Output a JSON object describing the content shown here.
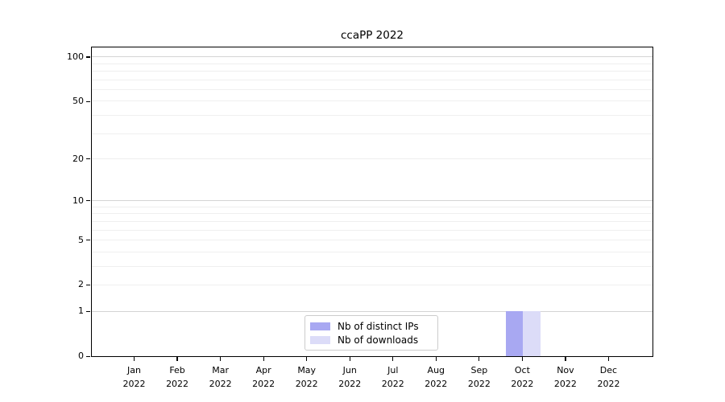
{
  "chart_data": {
    "type": "bar",
    "title": "ccaPP 2022",
    "categories": [
      {
        "month": "Jan",
        "year": "2022"
      },
      {
        "month": "Feb",
        "year": "2022"
      },
      {
        "month": "Mar",
        "year": "2022"
      },
      {
        "month": "Apr",
        "year": "2022"
      },
      {
        "month": "May",
        "year": "2022"
      },
      {
        "month": "Jun",
        "year": "2022"
      },
      {
        "month": "Jul",
        "year": "2022"
      },
      {
        "month": "Aug",
        "year": "2022"
      },
      {
        "month": "Sep",
        "year": "2022"
      },
      {
        "month": "Oct",
        "year": "2022"
      },
      {
        "month": "Nov",
        "year": "2022"
      },
      {
        "month": "Dec",
        "year": "2022"
      }
    ],
    "series": [
      {
        "name": "Nb of distinct IPs",
        "color": "#a8a8f2",
        "values": [
          0,
          0,
          0,
          0,
          0,
          0,
          0,
          0,
          0,
          1,
          0,
          0
        ]
      },
      {
        "name": "Nb of downloads",
        "color": "#dcdcf8",
        "values": [
          0,
          0,
          0,
          0,
          0,
          0,
          0,
          0,
          0,
          1,
          0,
          0
        ]
      }
    ],
    "xlabel": "",
    "ylabel": "",
    "yscale": "log1p",
    "ylim": [
      0,
      116
    ],
    "yticks": [
      0,
      1,
      2,
      5,
      10,
      20,
      50,
      100
    ],
    "ytick_labels": [
      "0",
      "1",
      "2",
      "5",
      "10",
      "20",
      "50",
      "100"
    ],
    "grid": {
      "axis": "y",
      "major": [
        1,
        10,
        100
      ],
      "minor": [
        2,
        3,
        4,
        5,
        6,
        7,
        8,
        9,
        20,
        30,
        40,
        50,
        60,
        70,
        80,
        90
      ]
    },
    "legend": {
      "position": "lower center-left",
      "border_color": "#cccccc"
    },
    "axes": {
      "spine_color": "#000000",
      "background": "#ffffff"
    }
  }
}
